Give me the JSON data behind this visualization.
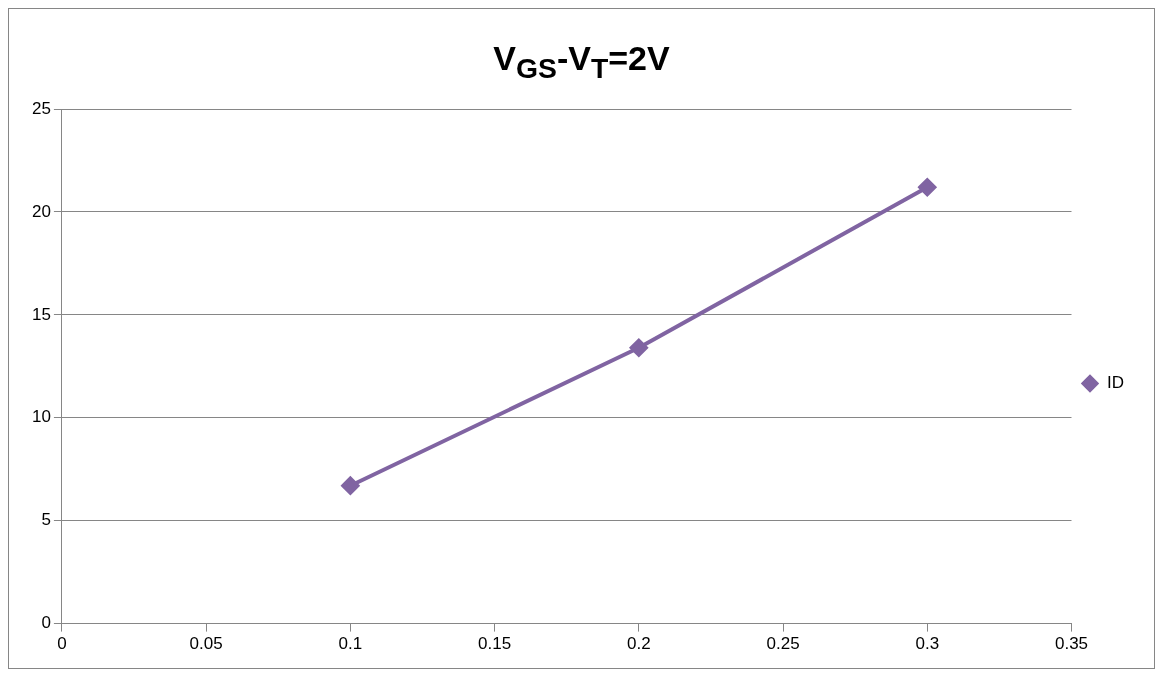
{
  "chart_data": {
    "type": "line",
    "title": "V$_{GS}$-V$_{T}$=2V",
    "x": [
      0.1,
      0.2,
      0.3
    ],
    "series": [
      {
        "name": "ID",
        "color": "#8064a2",
        "values": [
          6.7,
          13.4,
          21.2
        ]
      }
    ],
    "xlim": [
      0,
      0.35
    ],
    "xticks": [
      0,
      0.05,
      0.1,
      0.15,
      0.2,
      0.25,
      0.3,
      0.35
    ],
    "ylim": [
      0,
      25
    ],
    "yticks": [
      0,
      5,
      10,
      15,
      20,
      25
    ],
    "grid": "y",
    "legend": "right",
    "marker": "diamond",
    "line_style": "solid"
  }
}
